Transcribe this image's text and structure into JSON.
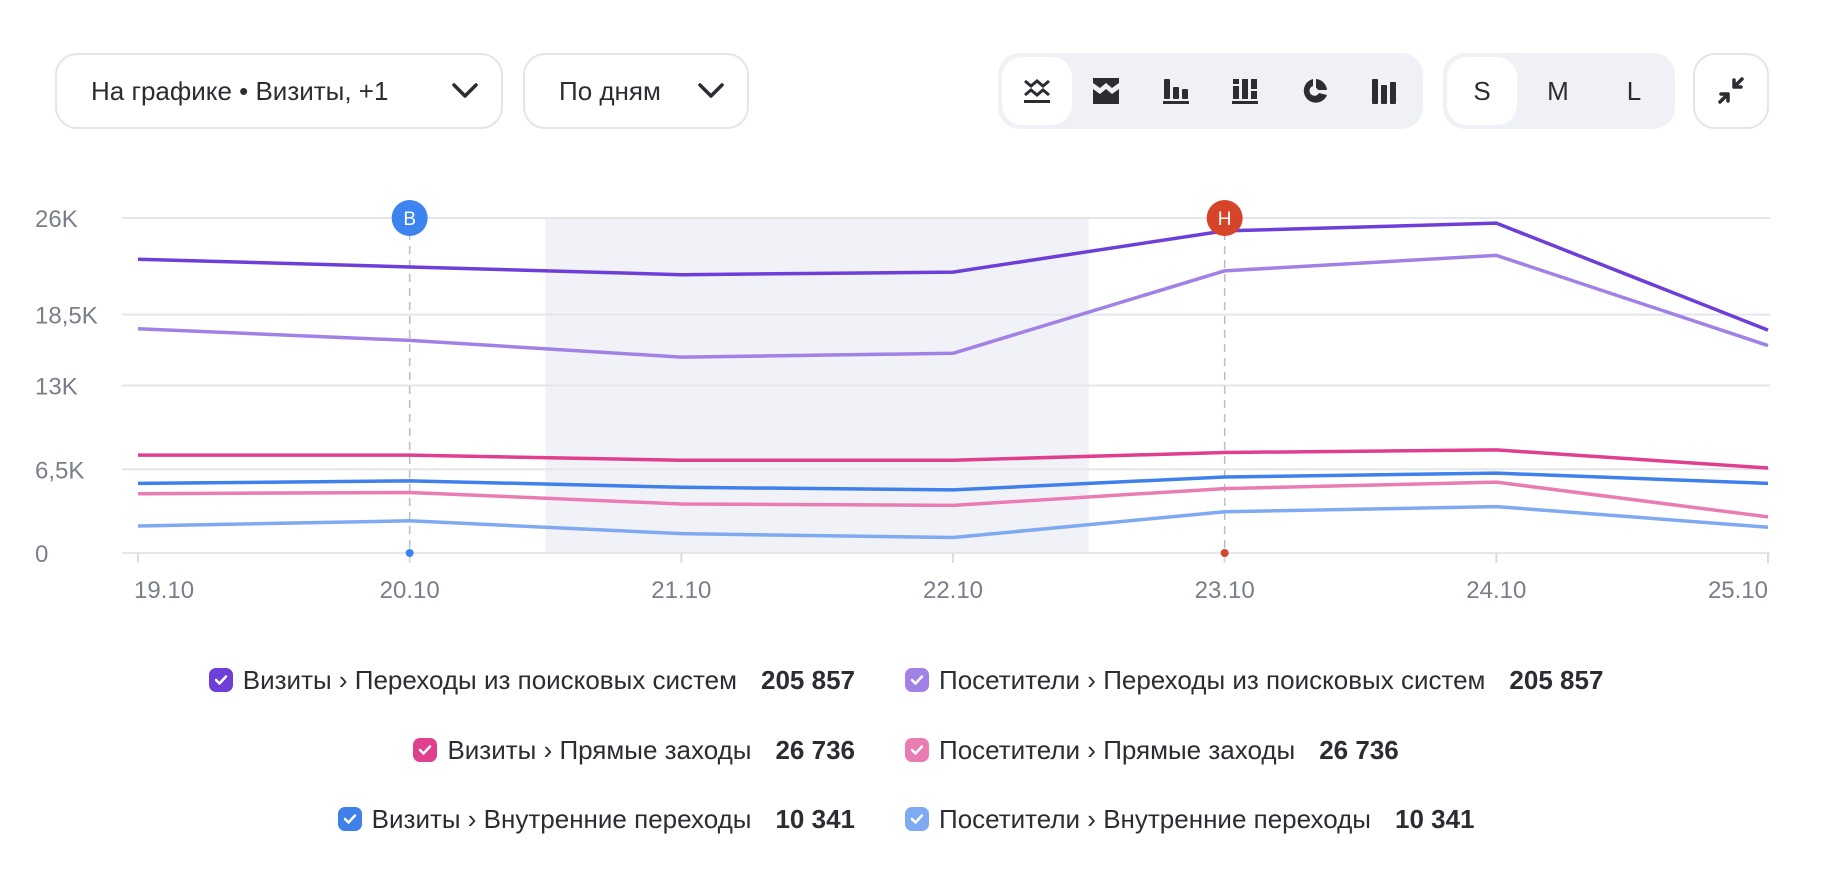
{
  "toolbar": {
    "series_dropdown": "На графике • Визиты, +1",
    "period_dropdown": "По дням",
    "chart_types": [
      {
        "icon": "line-chart-icon",
        "active": true
      },
      {
        "icon": "stacked-area-icon",
        "active": false
      },
      {
        "icon": "bar-chart-icon",
        "active": false
      },
      {
        "icon": "stacked-bar-icon",
        "active": false
      },
      {
        "icon": "pie-chart-icon",
        "active": false
      },
      {
        "icon": "column-chart-icon",
        "active": false
      }
    ],
    "sizes": [
      {
        "label": "S",
        "active": true
      },
      {
        "label": "M",
        "active": false
      },
      {
        "label": "L",
        "active": false
      }
    ],
    "collapse_icon": "collapse-arrows-icon"
  },
  "chart_data": {
    "type": "line",
    "x": [
      "19.10",
      "20.10",
      "21.10",
      "22.10",
      "23.10",
      "24.10",
      "25.10"
    ],
    "y_ticks": [
      {
        "value": 0,
        "label": "0"
      },
      {
        "value": 6500,
        "label": "6,5K"
      },
      {
        "value": 13000,
        "label": "13K"
      },
      {
        "value": 18500,
        "label": "18,5K"
      },
      {
        "value": 26000,
        "label": "26K"
      }
    ],
    "ylim": [
      0,
      26000
    ],
    "grid": true,
    "highlight_range": [
      "20.10",
      "22.10"
    ],
    "annotations": [
      {
        "x": "20.10",
        "label": "В",
        "color": "#3d84f0"
      },
      {
        "x": "23.10",
        "label": "Н",
        "color": "#d6442a"
      }
    ],
    "series": [
      {
        "name": "Визиты › Переходы из поисковых систем",
        "total": "205 857",
        "color": "#6d3fd8",
        "values": [
          22800,
          22200,
          21600,
          21800,
          25000,
          25600,
          17300
        ]
      },
      {
        "name": "Посетители › Переходы из поисковых систем",
        "total": "205 857",
        "color": "#a181e6",
        "values": [
          17400,
          16500,
          15200,
          15500,
          21900,
          23100,
          16100
        ]
      },
      {
        "name": "Визиты › Прямые заходы",
        "total": "26 736",
        "color": "#e03f8e",
        "values": [
          7600,
          7600,
          7200,
          7200,
          7800,
          8000,
          6600
        ]
      },
      {
        "name": "Посетители › Прямые заходы",
        "total": "26 736",
        "color": "#e97cb3",
        "values": [
          4600,
          4700,
          3800,
          3700,
          5000,
          5500,
          2800
        ]
      },
      {
        "name": "Визиты › Внутренние переходы",
        "total": "10 341",
        "color": "#3f80ea",
        "values": [
          5400,
          5600,
          5100,
          4900,
          5900,
          6200,
          5400
        ]
      },
      {
        "name": "Посетители › Внутренние переходы",
        "total": "10 341",
        "color": "#7faaf1",
        "values": [
          2100,
          2500,
          1500,
          1200,
          3200,
          3600,
          2000
        ]
      }
    ],
    "legend_placement": "bottom"
  }
}
